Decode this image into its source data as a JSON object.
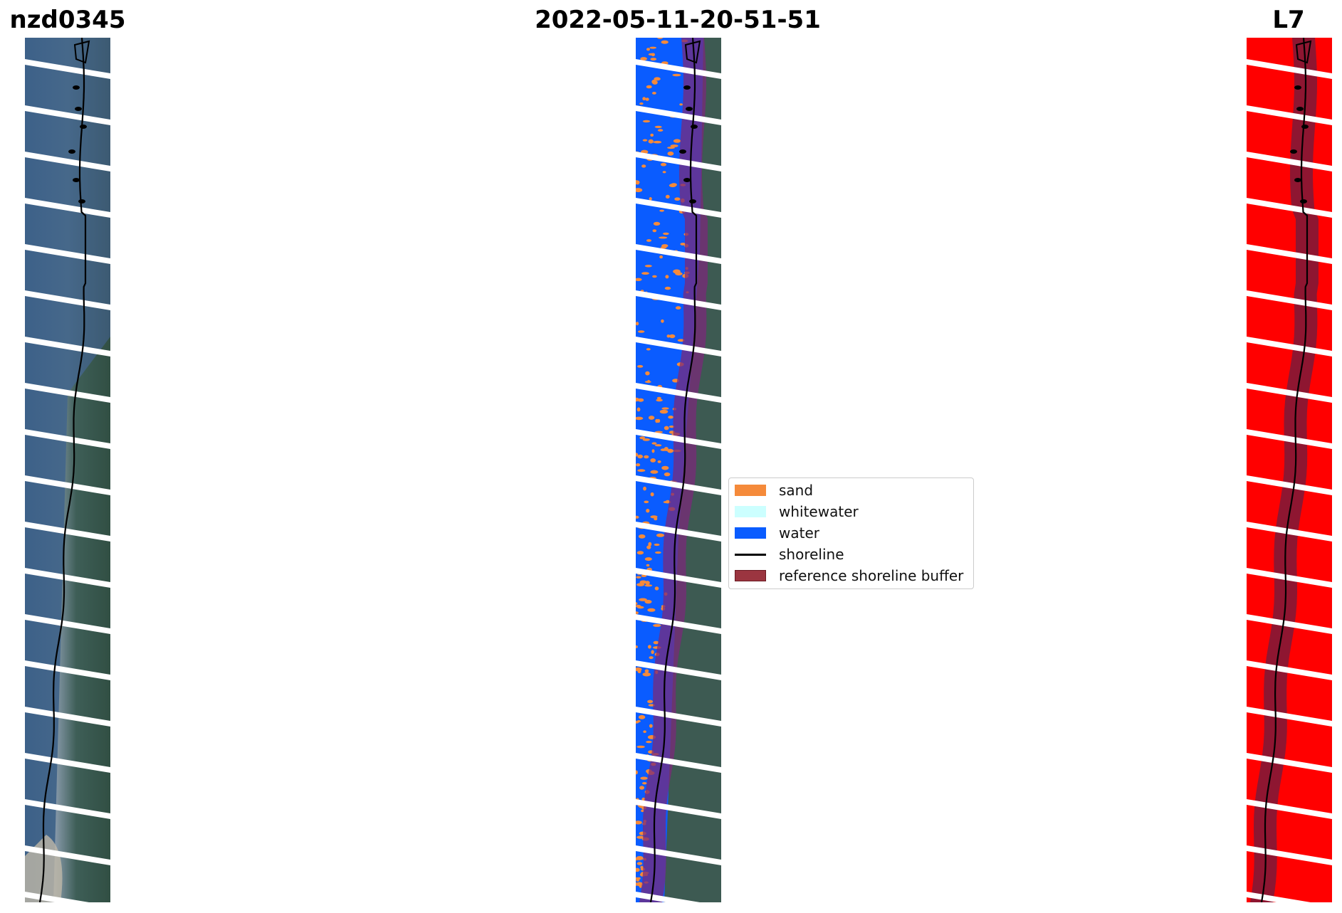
{
  "titles": {
    "left": "nzd0345",
    "center": "2022-05-11-20-51-51",
    "right": "L7"
  },
  "legend": {
    "items": [
      {
        "label": "sand",
        "kind": "patch",
        "color": "#f58a3a"
      },
      {
        "label": "whitewater",
        "kind": "patch",
        "color": "#ccffff"
      },
      {
        "label": "water",
        "kind": "patch",
        "color": "#0a5cff"
      },
      {
        "label": "shoreline",
        "kind": "line",
        "color": "#000000"
      },
      {
        "label": "reference shoreline buffer",
        "kind": "patch",
        "color": "#9b3540",
        "edge": "#6a1a22"
      }
    ]
  },
  "colors": {
    "rgb_background": "#3f5f86",
    "classified_water": "#0a5cff",
    "classified_land": "#3d5a52",
    "sand": "#f58a3a",
    "mask_red": "#ff0000",
    "buffer": "#7a2a7a",
    "stripe_gap": "#ffffff"
  }
}
